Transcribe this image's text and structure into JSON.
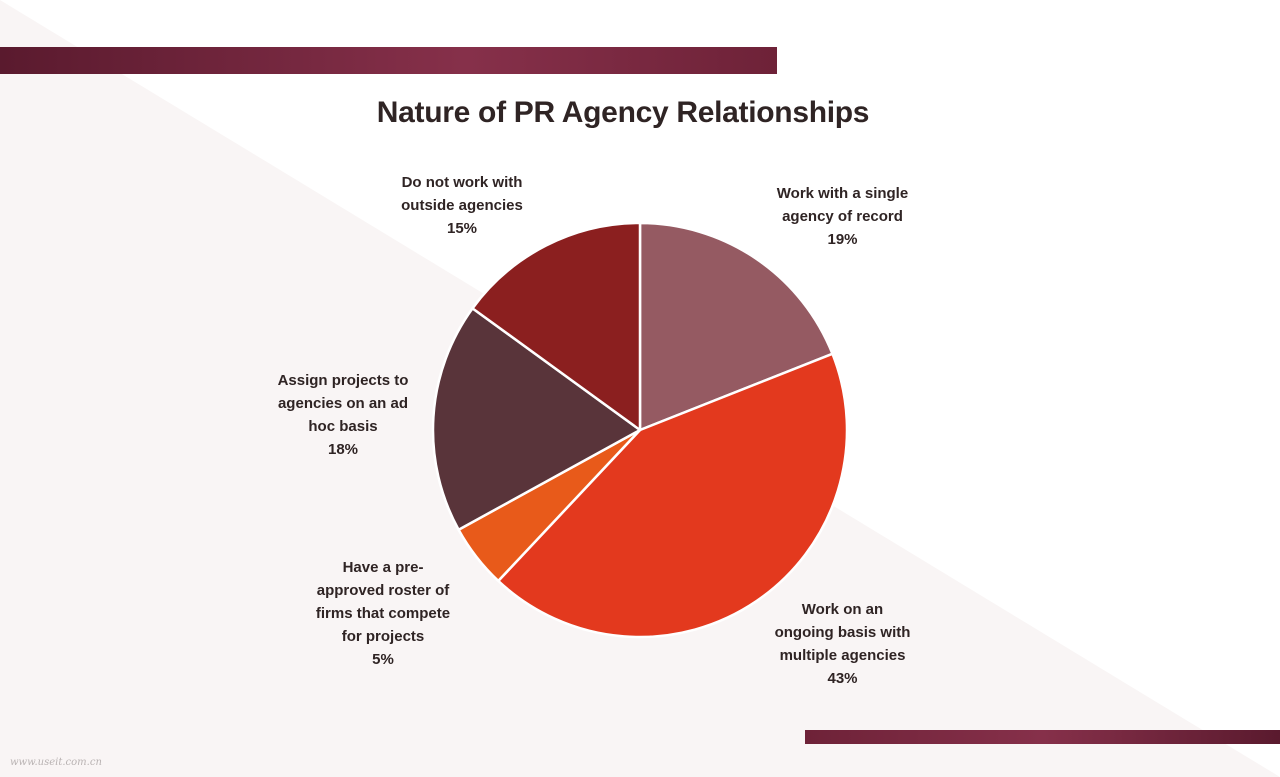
{
  "slide": {
    "bg_color": "#ffffff",
    "tint_color": "#f9f5f5",
    "bar_color_start": "#5a1a2e",
    "bar_color_end": "#8a3048"
  },
  "chart_data": {
    "type": "pie",
    "title": "Nature of PR Agency Relationships",
    "start_angle_deg": 0,
    "direction": "clockwise",
    "slices": [
      {
        "label": "Work with a single agency of record",
        "label_lines": [
          "Work with  a single",
          "agency  of  record"
        ],
        "value": 19,
        "value_label": "19%",
        "color": "#955a62"
      },
      {
        "label": "Work on an ongoing basis with multiple agencies",
        "label_lines": [
          "Work on an",
          "ongoing  basis with",
          "multiple agencies"
        ],
        "value": 43,
        "value_label": "43%",
        "color": "#e3391e"
      },
      {
        "label": "Have a pre-approved roster of firms that compete for projects",
        "label_lines": [
          "Have a  pre-",
          "approved roster  of",
          "firms that compete",
          "for projects"
        ],
        "value": 5,
        "value_label": "5%",
        "color": "#e85a1a"
      },
      {
        "label": "Assign projects to agencies on an ad hoc basis",
        "label_lines": [
          "Assign  projects to",
          "agencies on an ad",
          "hoc basis"
        ],
        "value": 18,
        "value_label": "18%",
        "color": "#59343a"
      },
      {
        "label": "Do not work with outside agencies",
        "label_lines": [
          "Do not work with",
          "outside  agencies"
        ],
        "value": 15,
        "value_label": "15%",
        "color": "#8b1f1f"
      }
    ],
    "legend": "none"
  },
  "footer": {
    "watermark": "www.useit.com.cn"
  }
}
